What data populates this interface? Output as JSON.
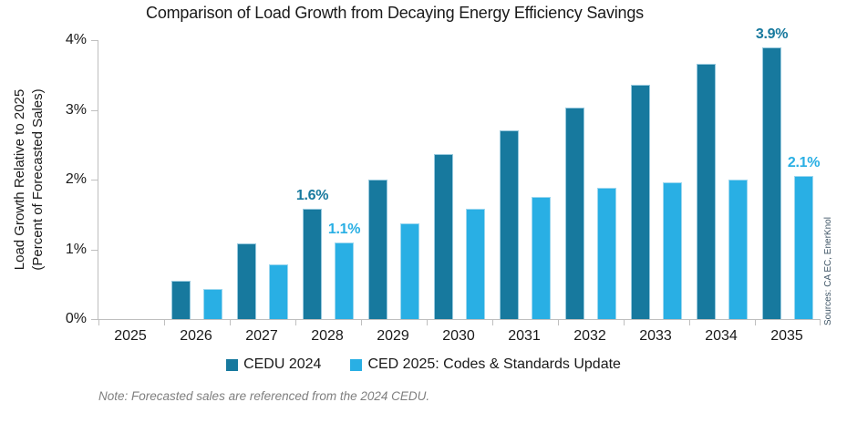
{
  "title": "Comparison of Load Growth from Decaying Energy Efficiency Savings",
  "y_axis": {
    "label_line1": "Load Growth Relative to 2025",
    "label_line2": "(Percent of Forecasted Sales)",
    "ticks": [
      "0%",
      "1%",
      "2%",
      "3%",
      "4%"
    ]
  },
  "legend": [
    {
      "label": "CEDU 2024",
      "color": "#17799E"
    },
    {
      "label": "CED 2025: Codes & Standards Update",
      "color": "#29AFE4"
    }
  ],
  "note": "Note: Forecasted sales are referenced from the 2024 CEDU.",
  "sources": "Sources: CA EC, EnerKnol",
  "colors": {
    "series1": "#17799E",
    "series2": "#29AFE4",
    "axis": "#BFBFBF",
    "text": "#1A1A1A",
    "note_text": "#7F7F7F"
  },
  "chart_data": {
    "type": "bar",
    "categories": [
      "2025",
      "2026",
      "2027",
      "2028",
      "2029",
      "2030",
      "2031",
      "2032",
      "2033",
      "2034",
      "2035"
    ],
    "series": [
      {
        "name": "CEDU 2024",
        "color": "#17799E",
        "values": [
          0,
          0.55,
          1.09,
          1.58,
          2.0,
          2.36,
          2.7,
          3.03,
          3.36,
          3.66,
          3.9
        ]
      },
      {
        "name": "CED 2025: Codes & Standards Update",
        "color": "#29AFE4",
        "values": [
          0,
          0.43,
          0.78,
          1.1,
          1.37,
          1.58,
          1.75,
          1.88,
          1.96,
          2.0,
          2.05
        ]
      }
    ],
    "annotations": [
      {
        "category": "2028",
        "series": 0,
        "text": "1.6%"
      },
      {
        "category": "2028",
        "series": 1,
        "text": "1.1%"
      },
      {
        "category": "2035",
        "series": 0,
        "text": "3.9%"
      },
      {
        "category": "2035",
        "series": 1,
        "text": "2.1%"
      }
    ],
    "title": "Comparison of Load Growth from Decaying Energy Efficiency Savings",
    "xlabel": "",
    "ylabel": "Load Growth Relative to 2025 (Percent of Forecasted Sales)",
    "ylim": [
      0,
      4
    ],
    "ytick_format": "percent",
    "grid": false,
    "legend_position": "bottom"
  }
}
